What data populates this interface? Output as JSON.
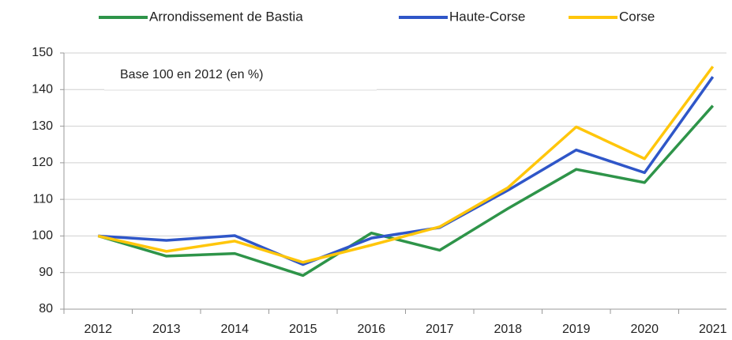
{
  "chart_data": {
    "type": "line",
    "annotation": "Base 100 en 2012 (en %)",
    "categories": [
      "2012",
      "2013",
      "2014",
      "2015",
      "2016",
      "2017",
      "2018",
      "2019",
      "2020",
      "2021"
    ],
    "series": [
      {
        "name": "Arrondissement de Bastia",
        "color": "#2e9449",
        "values": [
          100,
          94.5,
          95.2,
          89.2,
          100.8,
          96.1,
          107.5,
          118.2,
          114.6,
          135.6
        ]
      },
      {
        "name": "Haute-Corse",
        "color": "#2f56c8",
        "values": [
          100,
          98.8,
          100.1,
          92.2,
          99.4,
          102.3,
          112.5,
          123.5,
          117.3,
          143.5
        ]
      },
      {
        "name": "Corse",
        "color": "#ffc60b",
        "values": [
          100,
          95.8,
          98.6,
          92.8,
          97.5,
          102.5,
          113.2,
          129.8,
          121.1,
          146.3
        ]
      }
    ],
    "ylim": [
      80,
      150
    ],
    "yticks": [
      80,
      90,
      100,
      110,
      120,
      130,
      140,
      150
    ],
    "grid": true,
    "legend": "top"
  }
}
